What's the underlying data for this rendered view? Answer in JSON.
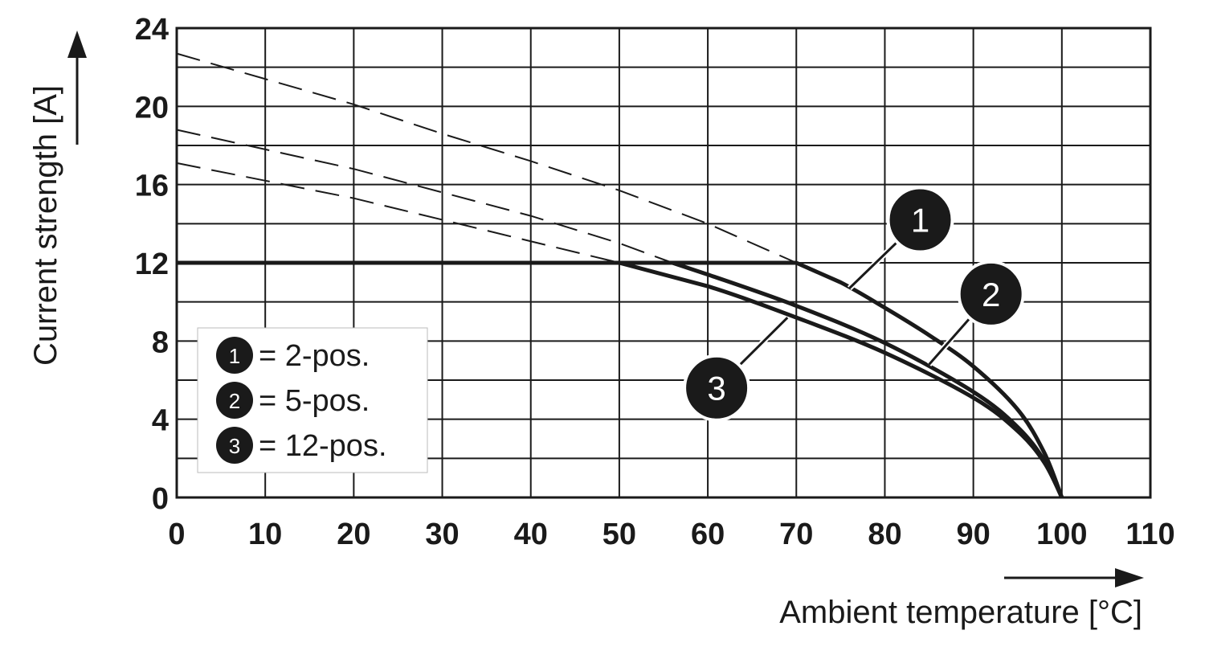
{
  "chart_data": {
    "type": "line",
    "xlabel": "Ambient temperature [°C]",
    "ylabel": "Current strength [A]",
    "xlim": [
      0,
      110
    ],
    "ylim": [
      0,
      24
    ],
    "x_ticks": [
      "0",
      "10",
      "20",
      "30",
      "40",
      "50",
      "60",
      "70",
      "80",
      "90",
      "100",
      "110"
    ],
    "y_ticks": [
      "0",
      "4",
      "8",
      "12",
      "16",
      "20",
      "24"
    ],
    "grid": true,
    "legend_position": "bottom-left",
    "legend": [
      {
        "badge": "1",
        "text": "= 2-pos."
      },
      {
        "badge": "2",
        "text": "= 5-pos."
      },
      {
        "badge": "3",
        "text": "= 12-pos."
      }
    ],
    "series": [
      {
        "callout": "1",
        "limit": 12,
        "derating": [
          [
            0,
            22.7
          ],
          [
            10,
            21.4
          ],
          [
            20,
            20.1
          ],
          [
            30,
            18.6
          ],
          [
            40,
            17.2
          ],
          [
            50,
            15.7
          ],
          [
            60,
            14.0
          ],
          [
            70,
            12.0
          ],
          [
            75,
            11.0
          ],
          [
            80,
            9.7
          ],
          [
            85,
            8.3
          ],
          [
            90,
            6.7
          ],
          [
            95,
            4.5
          ],
          [
            98,
            2.3
          ],
          [
            100,
            0
          ]
        ],
        "style": "solid"
      },
      {
        "callout": "2",
        "limit": 12,
        "derating": [
          [
            0,
            18.8
          ],
          [
            10,
            17.8
          ],
          [
            20,
            16.8
          ],
          [
            30,
            15.6
          ],
          [
            40,
            14.4
          ],
          [
            50,
            13.0
          ],
          [
            56,
            12.0
          ],
          [
            60,
            11.4
          ],
          [
            70,
            9.8
          ],
          [
            80,
            7.9
          ],
          [
            90,
            5.4
          ],
          [
            95,
            3.6
          ],
          [
            98,
            1.9
          ],
          [
            100,
            0
          ]
        ],
        "style": "solid"
      },
      {
        "callout": "3",
        "limit": 12,
        "derating": [
          [
            0,
            17.1
          ],
          [
            10,
            16.2
          ],
          [
            20,
            15.3
          ],
          [
            30,
            14.2
          ],
          [
            40,
            13.1
          ],
          [
            50,
            12.0
          ],
          [
            60,
            10.8
          ],
          [
            70,
            9.2
          ],
          [
            80,
            7.4
          ],
          [
            90,
            5.1
          ],
          [
            95,
            3.4
          ],
          [
            98,
            1.8
          ],
          [
            100,
            0
          ]
        ],
        "style": "solid"
      }
    ],
    "callouts": [
      {
        "label": "1",
        "x": 84,
        "y": 14.2
      },
      {
        "label": "2",
        "x": 92,
        "y": 10.4
      },
      {
        "label": "3",
        "x": 61,
        "y": 5.6
      }
    ],
    "colors": {
      "line": "#1a1a1a",
      "grid": "#1a1a1a",
      "badge": "#1a1a1a"
    }
  }
}
